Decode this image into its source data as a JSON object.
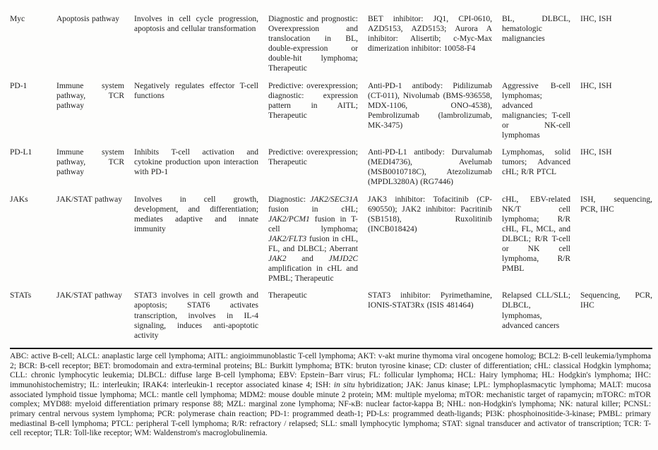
{
  "colors": {
    "background": "#fdfdfc",
    "ink": "#1d1d1d",
    "rule": "#141414"
  },
  "page": {
    "table": {
      "rows": [
        {
          "gene": "Myc",
          "pathway": "Apoptosis pathway",
          "function": "Involves in cell cycle progression, apoptosis and cellular transformation",
          "biomarker": "Diagnostic and prognostic: Overexpression and translocation in BL, double-expression or double-hit lymphoma; Therapeutic",
          "inhibitors": "BET inhibitor: JQ1, CPI-0610, AZD5153, AZD5153; Aurora A inhibitor: Alisertib; c-Myc-Max dimerization inhibitor: 10058-F4",
          "diseases": "BL, DLBCL, hematologic malignancies",
          "methods": "IHC, ISH"
        },
        {
          "gene": "PD-1",
          "pathway": "Immune system pathway, TCR pathway",
          "function": "Negatively regulates effector T-cell functions",
          "biomarker": "Predictive: overexpression; diagnostic: expression pattern in AITL; Therapeutic",
          "inhibitors": "Anti-PD-1 antibody: Pidilizumab (CT-011), Nivolumab (BMS-936558, MDX-1106, ONO-4538), Pembrolizumab (lambrolizumab, MK-3475)",
          "diseases": "Aggressive B-cell lymphomas; advanced malignancies; T-cell or NK-cell lymphomas",
          "methods": "IHC, ISH"
        },
        {
          "gene": "PD-L1",
          "pathway": "Immune system pathway, TCR pathway",
          "function": "Inhibits T-cell activation and cytokine production upon interaction with PD-1",
          "biomarker": "Predictive: overexpression; Therapeutic",
          "inhibitors": "Anti-PD-L1 antibody: Durvalumab (MEDI4736), Avelumab (MSB0010718C), Atezolizumab (MPDL3280A) (RG7446)",
          "diseases": "Lymphomas, solid tumors; Advanced cHL; R/R PTCL",
          "methods": "IHC, ISH"
        },
        {
          "gene": "JAKs",
          "pathway": "JAK/STAT pathway",
          "function": "Involves in cell growth, development, and differentiation; mediates adaptive and innate immunity",
          "biomarker": "Diagnostic: *JAK2/SEC31A* fusion in cHL; *JAK2/PCM1* fusion in T-cell lymphoma; *JAK2/FLT3* fusion in cHL, FL, and DLBCL; Aberrant *JAK2* and *JMJD2C* amplification in cHL and PMBL; Therapeutic",
          "inhibitors": "JAK3 inhibitor: Tofacitinib (CP-690550); JAK2 inhibitor: Pacritinib (SB1518), Ruxolitinib (INCB018424)",
          "diseases": "cHL, EBV-related NK/T cell lymphoma; R/R cHL, FL, MCL, and DLBCL; R/R T-cell or NK cell lymphoma, R/R PMBL",
          "methods": "ISH, sequencing, PCR, IHC"
        },
        {
          "gene": "STATs",
          "pathway": "JAK/STAT pathway",
          "function": "STAT3 involves in cell growth and apoptosis; STAT6 activates transcription, involves in IL-4 signaling, induces anti-apoptotic activity",
          "biomarker": "Therapeutic",
          "inhibitors": "STAT3 inhibitor: Pyrimethamine, IONIS-STAT3Rx (ISIS 481464)",
          "diseases": "Relapsed CLL/SLL; DLBCL, lymphomas, advanced cancers",
          "methods": "Sequencing, PCR, IHC"
        }
      ]
    },
    "footnote": "ABC: active B-cell; ALCL: anaplastic large cell lymphoma; AITL: angioimmunoblastic T-cell lymphoma; AKT: v-akt murine thymoma viral oncogene homolog; BCL2: B-cell leukemia/lymphoma 2; BCR: B-cell receptor; BET: bromodomain and extra-terminal proteins; BL: Burkitt lymphoma; BTK: bruton tyrosine kinase; CD: cluster of differentiation; cHL: classical Hodgkin lymphoma; CLL: chronic lymphocytic leukemia; DLBCL: diffuse large B-cell lymphoma; EBV: Epstein−Barr virus; FL: follicular lymphoma; HCL: Hairy lymphoma; HL: Hodgkin's lymphoma; IHC: immunohistochemistry; IL: interleukin; IRAK4: interleukin-1 receptor associated kinase 4; ISH: *in situ* hybridization; JAK: Janus kinase; LPL: lymphoplasmacytic lymphoma; MALT: mucosa associated lymphoid tissue lymphoma; MCL: mantle cell lymphoma; MDM2: mouse double minute 2 protein; MM: multiple myeloma; mTOR: mechanistic target of rapamycin; mTORC: mTOR complex; MYD88: myeloid differentiation primary response 88; MZL: marginal zone lymphoma; NF-κB: nuclear factor-kappa B; NHL: non-Hodgkin's lymphoma; NK: natural killer; PCNSL: primary central nervous system lymphoma; PCR: polymerase chain reaction; PD-1: programmed death-1; PD-Ls: programmed death-ligands; PI3K: phosphoinositide-3-kinase; PMBL: primary mediastinal B-cell lymphoma; PTCL: peripheral T-cell lymphoma; R/R: refractory / relapsed; SLL: small lymphocytic lymphoma; STAT: signal transducer and activator of transcription; TCR: T-cell receptor; TLR: Toll-like receptor; WM: Waldenstrom's macroglobulinemia."
  }
}
